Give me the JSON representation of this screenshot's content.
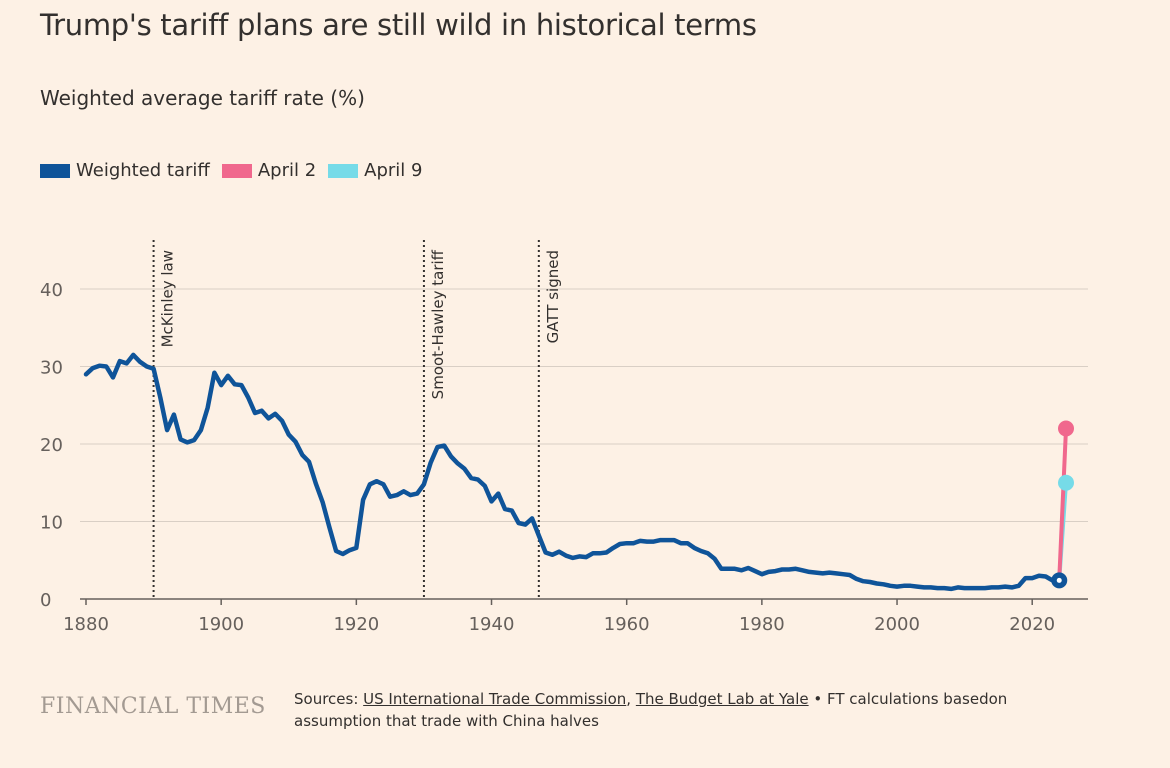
{
  "title": "Trump's tariff plans are still wild in historical terms",
  "subtitle": "Weighted average tariff rate (%)",
  "legend": [
    {
      "label": "Weighted tariff",
      "color": "#0f5499"
    },
    {
      "label": "April 2",
      "color": "#f0688d"
    },
    {
      "label": "April 9",
      "color": "#76dbe8"
    }
  ],
  "footer": {
    "brand": "FINANCIAL TIMES",
    "sources_prefix": "Sources: ",
    "source1": "US International Trade Commission",
    "separator": ", ",
    "source2": "The Budget Lab at Yale",
    "sources_rest": " • FT calculations basedon assumption that trade with China halves"
  },
  "chart_data": {
    "type": "line",
    "xlim": [
      1880,
      2026
    ],
    "ylim": [
      0,
      40
    ],
    "xticks": [
      1880,
      1900,
      1920,
      1940,
      1960,
      1980,
      2000,
      2020
    ],
    "yticks": [
      0,
      10,
      20,
      30,
      40
    ],
    "grid": "horizontal",
    "legend_position": "top-left",
    "annotations": [
      {
        "x": 1890,
        "label": "McKinley law"
      },
      {
        "x": 1930,
        "label": "Smoot-Hawley tariff"
      },
      {
        "x": 1947,
        "label": "GATT signed"
      }
    ],
    "series": [
      {
        "name": "Weighted tariff",
        "color": "#0f5499",
        "points": [
          [
            1880,
            29.0
          ],
          [
            1881,
            29.8
          ],
          [
            1882,
            30.1
          ],
          [
            1883,
            30.0
          ],
          [
            1884,
            28.6
          ],
          [
            1885,
            30.7
          ],
          [
            1886,
            30.4
          ],
          [
            1887,
            31.5
          ],
          [
            1888,
            30.6
          ],
          [
            1889,
            30.0
          ],
          [
            1890,
            29.7
          ],
          [
            1891,
            26.0
          ],
          [
            1892,
            21.8
          ],
          [
            1893,
            23.8
          ],
          [
            1894,
            20.6
          ],
          [
            1895,
            20.2
          ],
          [
            1896,
            20.5
          ],
          [
            1897,
            21.8
          ],
          [
            1898,
            24.7
          ],
          [
            1899,
            29.2
          ],
          [
            1900,
            27.6
          ],
          [
            1901,
            28.8
          ],
          [
            1902,
            27.7
          ],
          [
            1903,
            27.6
          ],
          [
            1904,
            26.0
          ],
          [
            1905,
            24.0
          ],
          [
            1906,
            24.3
          ],
          [
            1907,
            23.3
          ],
          [
            1908,
            23.9
          ],
          [
            1909,
            23.0
          ],
          [
            1910,
            21.2
          ],
          [
            1911,
            20.3
          ],
          [
            1912,
            18.6
          ],
          [
            1913,
            17.7
          ],
          [
            1914,
            14.9
          ],
          [
            1915,
            12.5
          ],
          [
            1916,
            9.3
          ],
          [
            1917,
            6.2
          ],
          [
            1918,
            5.8
          ],
          [
            1919,
            6.3
          ],
          [
            1920,
            6.6
          ],
          [
            1921,
            12.8
          ],
          [
            1922,
            14.8
          ],
          [
            1923,
            15.2
          ],
          [
            1924,
            14.8
          ],
          [
            1925,
            13.2
          ],
          [
            1926,
            13.4
          ],
          [
            1927,
            13.9
          ],
          [
            1928,
            13.4
          ],
          [
            1929,
            13.6
          ],
          [
            1930,
            14.8
          ],
          [
            1931,
            17.6
          ],
          [
            1932,
            19.6
          ],
          [
            1933,
            19.8
          ],
          [
            1934,
            18.4
          ],
          [
            1935,
            17.5
          ],
          [
            1936,
            16.8
          ],
          [
            1937,
            15.6
          ],
          [
            1938,
            15.4
          ],
          [
            1939,
            14.6
          ],
          [
            1940,
            12.6
          ],
          [
            1941,
            13.6
          ],
          [
            1942,
            11.6
          ],
          [
            1943,
            11.4
          ],
          [
            1944,
            9.8
          ],
          [
            1945,
            9.6
          ],
          [
            1946,
            10.4
          ],
          [
            1947,
            8.2
          ],
          [
            1948,
            6.0
          ],
          [
            1949,
            5.7
          ],
          [
            1950,
            6.1
          ],
          [
            1951,
            5.6
          ],
          [
            1952,
            5.3
          ],
          [
            1953,
            5.5
          ],
          [
            1954,
            5.4
          ],
          [
            1955,
            5.9
          ],
          [
            1956,
            5.9
          ],
          [
            1957,
            6.0
          ],
          [
            1958,
            6.6
          ],
          [
            1959,
            7.1
          ],
          [
            1960,
            7.2
          ],
          [
            1961,
            7.2
          ],
          [
            1962,
            7.5
          ],
          [
            1963,
            7.4
          ],
          [
            1964,
            7.4
          ],
          [
            1965,
            7.6
          ],
          [
            1966,
            7.6
          ],
          [
            1967,
            7.6
          ],
          [
            1968,
            7.2
          ],
          [
            1969,
            7.2
          ],
          [
            1970,
            6.6
          ],
          [
            1971,
            6.2
          ],
          [
            1972,
            5.9
          ],
          [
            1973,
            5.2
          ],
          [
            1974,
            3.9
          ],
          [
            1975,
            3.9
          ],
          [
            1976,
            3.9
          ],
          [
            1977,
            3.7
          ],
          [
            1978,
            4.0
          ],
          [
            1979,
            3.6
          ],
          [
            1980,
            3.2
          ],
          [
            1981,
            3.5
          ],
          [
            1982,
            3.6
          ],
          [
            1983,
            3.8
          ],
          [
            1984,
            3.8
          ],
          [
            1985,
            3.9
          ],
          [
            1986,
            3.7
          ],
          [
            1987,
            3.5
          ],
          [
            1988,
            3.4
          ],
          [
            1989,
            3.3
          ],
          [
            1990,
            3.4
          ],
          [
            1991,
            3.3
          ],
          [
            1992,
            3.2
          ],
          [
            1993,
            3.1
          ],
          [
            1994,
            2.6
          ],
          [
            1995,
            2.3
          ],
          [
            1996,
            2.2
          ],
          [
            1997,
            2.0
          ],
          [
            1998,
            1.9
          ],
          [
            1999,
            1.7
          ],
          [
            2000,
            1.6
          ],
          [
            2001,
            1.7
          ],
          [
            2002,
            1.7
          ],
          [
            2003,
            1.6
          ],
          [
            2004,
            1.5
          ],
          [
            2005,
            1.5
          ],
          [
            2006,
            1.4
          ],
          [
            2007,
            1.4
          ],
          [
            2008,
            1.3
          ],
          [
            2009,
            1.5
          ],
          [
            2010,
            1.4
          ],
          [
            2011,
            1.4
          ],
          [
            2012,
            1.4
          ],
          [
            2013,
            1.4
          ],
          [
            2014,
            1.5
          ],
          [
            2015,
            1.5
          ],
          [
            2016,
            1.6
          ],
          [
            2017,
            1.5
          ],
          [
            2018,
            1.7
          ],
          [
            2019,
            2.7
          ],
          [
            2020,
            2.7
          ],
          [
            2021,
            3.0
          ],
          [
            2022,
            2.9
          ],
          [
            2023,
            2.4
          ],
          [
            2024,
            2.4
          ]
        ]
      },
      {
        "name": "April 2",
        "color": "#f0688d",
        "points": [
          [
            2024,
            2.4
          ],
          [
            2025,
            22.0
          ]
        ]
      },
      {
        "name": "April 9",
        "color": "#76dbe8",
        "points": [
          [
            2024,
            2.4
          ],
          [
            2025,
            15.0
          ]
        ]
      }
    ]
  }
}
